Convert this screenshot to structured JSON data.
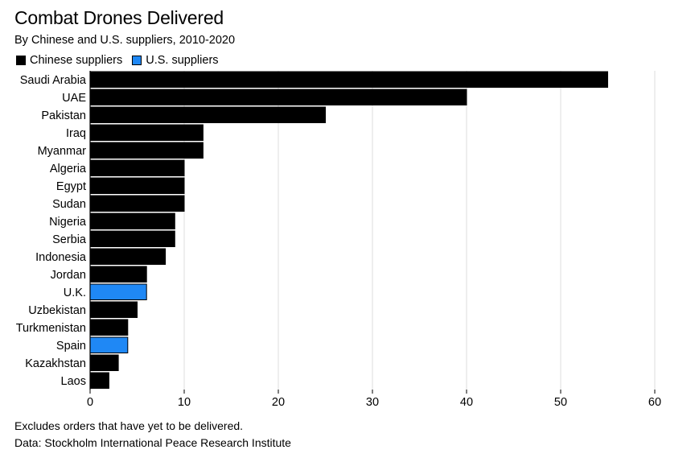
{
  "chart_data": {
    "type": "bar",
    "orientation": "horizontal",
    "title": "Combat Drones Delivered",
    "subtitle": "By Chinese and U.S. suppliers, 2010-2020",
    "legend": [
      {
        "name": "Chinese suppliers",
        "color": "#000000"
      },
      {
        "name": "U.S. suppliers",
        "color": "#1f88f5"
      }
    ],
    "categories": [
      "Saudi Arabia",
      "UAE",
      "Pakistan",
      "Iraq",
      "Myanmar",
      "Algeria",
      "Egypt",
      "Sudan",
      "Nigeria",
      "Serbia",
      "Indonesia",
      "Jordan",
      "U.K.",
      "Uzbekistan",
      "Turkmenistan",
      "Spain",
      "Kazakhstan",
      "Laos"
    ],
    "values": [
      55,
      40,
      25,
      12,
      12,
      10,
      10,
      10,
      9,
      9,
      8,
      6,
      6,
      5,
      4,
      4,
      3,
      2
    ],
    "supplier": [
      "Chinese suppliers",
      "Chinese suppliers",
      "Chinese suppliers",
      "Chinese suppliers",
      "Chinese suppliers",
      "Chinese suppliers",
      "Chinese suppliers",
      "Chinese suppliers",
      "Chinese suppliers",
      "Chinese suppliers",
      "Chinese suppliers",
      "Chinese suppliers",
      "U.S. suppliers",
      "Chinese suppliers",
      "Chinese suppliers",
      "U.S. suppliers",
      "Chinese suppliers",
      "Chinese suppliers"
    ],
    "xlim": [
      0,
      60
    ],
    "xticks": [
      0,
      10,
      20,
      30,
      40,
      50,
      60
    ],
    "xlabel": "",
    "ylabel": "",
    "grid": "vertical",
    "legend_position": "top-left"
  },
  "footnote": "Excludes orders that have yet to be delivered.",
  "source": "Data: Stockholm International Peace Research Institute"
}
